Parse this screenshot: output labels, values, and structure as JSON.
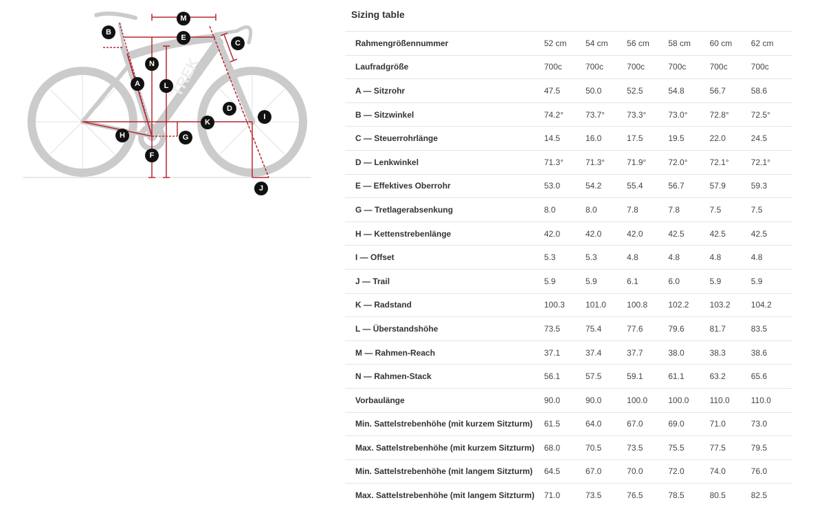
{
  "title": "Sizing table",
  "colors": {
    "accent": "#b5262e",
    "frame": "#c9c9c9",
    "label_bg": "#111111"
  },
  "diagram": {
    "frame_logo": "TREK",
    "labels": [
      "M",
      "E",
      "B",
      "C",
      "N",
      "L",
      "A",
      "D",
      "I",
      "K",
      "H",
      "G",
      "F",
      "J"
    ]
  },
  "table": {
    "rows": [
      {
        "label": "Rahmengrößennummer",
        "values": [
          "52 cm",
          "54 cm",
          "56 cm",
          "58 cm",
          "60 cm",
          "62 cm"
        ]
      },
      {
        "label": "Laufradgröße",
        "values": [
          "700c",
          "700c",
          "700c",
          "700c",
          "700c",
          "700c"
        ]
      },
      {
        "label": "A — Sitzrohr",
        "values": [
          "47.5",
          "50.0",
          "52.5",
          "54.8",
          "56.7",
          "58.6"
        ]
      },
      {
        "label": "B — Sitzwinkel",
        "values": [
          "74.2°",
          "73.7°",
          "73.3°",
          "73.0°",
          "72.8°",
          "72.5°"
        ]
      },
      {
        "label": "C — Steuerrohrlänge",
        "values": [
          "14.5",
          "16.0",
          "17.5",
          "19.5",
          "22.0",
          "24.5"
        ]
      },
      {
        "label": "D — Lenkwinkel",
        "values": [
          "71.3°",
          "71.3°",
          "71.9°",
          "72.0°",
          "72.1°",
          "72.1°"
        ]
      },
      {
        "label": "E — Effektives Oberrohr",
        "values": [
          "53.0",
          "54.2",
          "55.4",
          "56.7",
          "57.9",
          "59.3"
        ]
      },
      {
        "label": "G — Tretlagerabsenkung",
        "values": [
          "8.0",
          "8.0",
          "7.8",
          "7.8",
          "7.5",
          "7.5"
        ]
      },
      {
        "label": "H — Kettenstrebenlänge",
        "values": [
          "42.0",
          "42.0",
          "42.0",
          "42.5",
          "42.5",
          "42.5"
        ]
      },
      {
        "label": "I — Offset",
        "values": [
          "5.3",
          "5.3",
          "4.8",
          "4.8",
          "4.8",
          "4.8"
        ]
      },
      {
        "label": "J — Trail",
        "values": [
          "5.9",
          "5.9",
          "6.1",
          "6.0",
          "5.9",
          "5.9"
        ]
      },
      {
        "label": "K — Radstand",
        "values": [
          "100.3",
          "101.0",
          "100.8",
          "102.2",
          "103.2",
          "104.2"
        ]
      },
      {
        "label": "L — Überstandshöhe",
        "values": [
          "73.5",
          "75.4",
          "77.6",
          "79.6",
          "81.7",
          "83.5"
        ]
      },
      {
        "label": "M — Rahmen-Reach",
        "values": [
          "37.1",
          "37.4",
          "37.7",
          "38.0",
          "38.3",
          "38.6"
        ]
      },
      {
        "label": "N — Rahmen-Stack",
        "values": [
          "56.1",
          "57.5",
          "59.1",
          "61.1",
          "63.2",
          "65.6"
        ]
      },
      {
        "label": "Vorbaulänge",
        "values": [
          "90.0",
          "90.0",
          "100.0",
          "100.0",
          "110.0",
          "110.0"
        ]
      },
      {
        "label": "Min. Sattelstrebenhöhe (mit kurzem Sitzturm)",
        "values": [
          "61.5",
          "64.0",
          "67.0",
          "69.0",
          "71.0",
          "73.0"
        ]
      },
      {
        "label": "Max. Sattelstrebenhöhe (mit kurzem Sitzturm)",
        "values": [
          "68.0",
          "70.5",
          "73.5",
          "75.5",
          "77.5",
          "79.5"
        ]
      },
      {
        "label": "Min. Sattelstrebenhöhe (mit langem Sitzturm)",
        "values": [
          "64.5",
          "67.0",
          "70.0",
          "72.0",
          "74.0",
          "76.0"
        ]
      },
      {
        "label": "Max. Sattelstrebenhöhe (mit langem Sitzturm)",
        "values": [
          "71.0",
          "73.5",
          "76.5",
          "78.5",
          "80.5",
          "82.5"
        ]
      }
    ]
  }
}
